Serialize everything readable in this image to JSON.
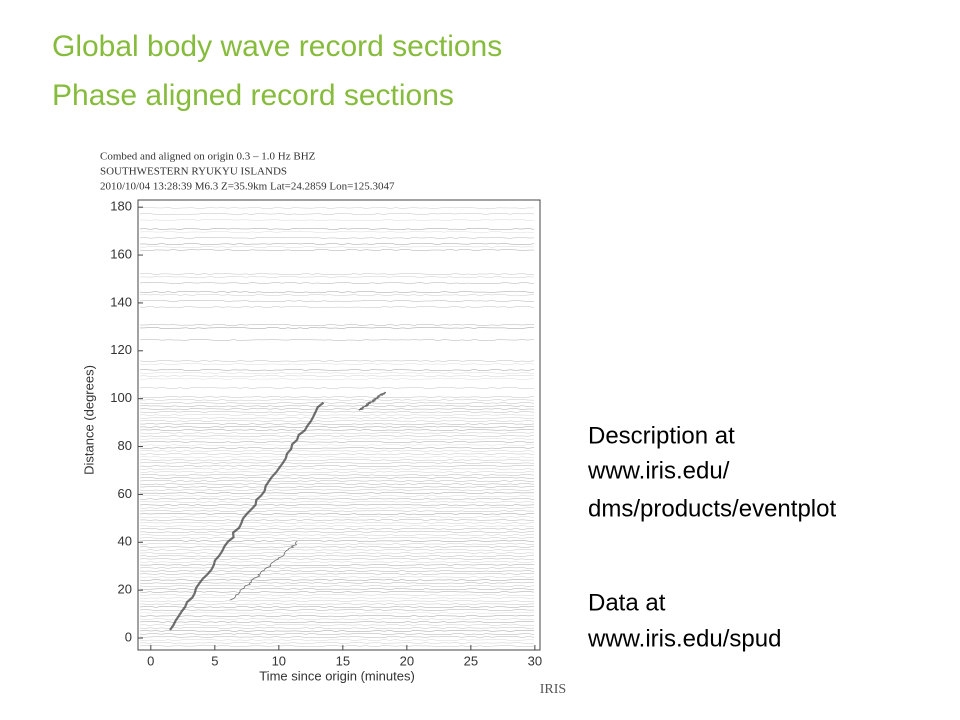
{
  "slide": {
    "title_lines": [
      "Global body wave record sections",
      "Phase aligned record sections"
    ],
    "notes": [
      "Description at",
      "www.iris.edu/",
      "dms/products/eventplot",
      "Data at",
      "www.iris.edu/spud"
    ]
  },
  "chart_data": {
    "type": "record-section",
    "header_lines": [
      "Combed and aligned on origin  0.3 – 1.0 Hz  BHZ",
      "SOUTHWESTERN RYUKYU ISLANDS",
      "2010/10/04  13:28:39  M6.3  Z=35.9km Lat=24.2859 Lon=125.3047"
    ],
    "x_label": "Time since origin (minutes)",
    "y_label": "Distance (degrees)",
    "xlim": [
      -1,
      30.4
    ],
    "xticks": [
      0,
      5,
      10,
      15,
      20,
      25,
      30
    ],
    "ylim": [
      -5,
      183
    ],
    "yticks": [
      0,
      20,
      40,
      60,
      80,
      100,
      120,
      140,
      160,
      180
    ],
    "logo": "IRIS"
  }
}
